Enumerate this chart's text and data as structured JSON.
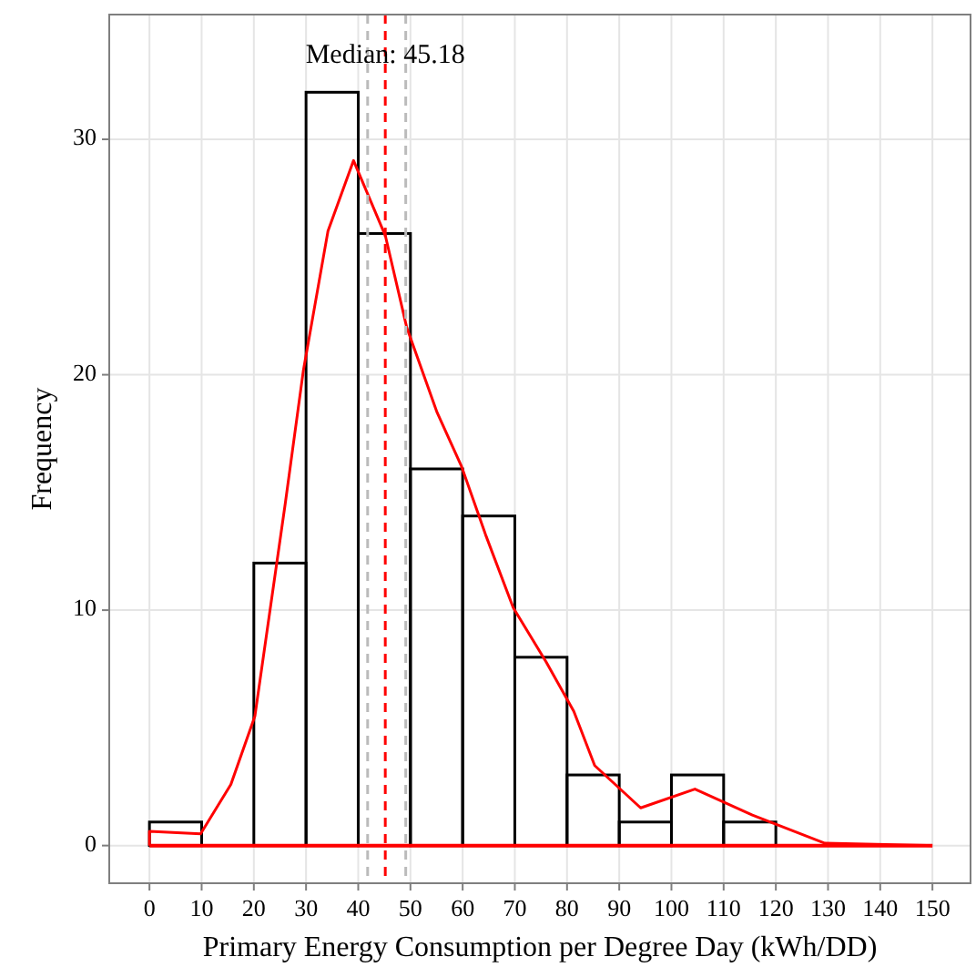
{
  "chart_data": {
    "type": "histogram",
    "xlabel": "Primary Energy Consumption per Degree Day (kWh/DD)",
    "ylabel": "Frequency",
    "bins": [
      0,
      10,
      20,
      30,
      40,
      50,
      60,
      70,
      80,
      90,
      100,
      110,
      120
    ],
    "values": [
      1,
      0,
      12,
      32,
      26,
      16,
      14,
      8,
      3,
      1,
      3,
      1
    ],
    "color": "#000000",
    "series": [
      {
        "type": "line",
        "color": "#ff0000",
        "x": [
          0,
          0,
          9.8,
          15.6,
          20.2,
          26,
          29.5,
          34.2,
          39.1,
          45.2,
          49.3,
          55.1,
          59.8,
          64.4,
          69.7,
          76,
          81.3,
          85.3,
          94.1,
          104.5,
          115.5,
          129.4,
          150
        ],
        "values": [
          0,
          0.6,
          0.5,
          2.6,
          5.5,
          14.5,
          20.2,
          26.1,
          29.1,
          25.9,
          22,
          18.4,
          16.1,
          13.2,
          10.1,
          7.8,
          5.7,
          3.4,
          1.6,
          2.4,
          1.3,
          0.1,
          0
        ]
      }
    ],
    "ref_lines": [
      {
        "axis": "y",
        "value": 0,
        "color": "#ff0000",
        "line_style": "solid"
      },
      {
        "axis": "x",
        "value": 45.18,
        "color": "#ff0000",
        "line_style": "dashed"
      },
      {
        "axis": "x",
        "value": 41.8,
        "color": "#bbbbbb",
        "line_style": "dashed"
      },
      {
        "axis": "x",
        "value": 49.1,
        "color": "#bbbbbb",
        "line_style": "dashed"
      }
    ],
    "annotations": [
      {
        "text": "Median: 45.18",
        "x": 45.18,
        "y": 33.5
      }
    ],
    "xlim": [
      -7.7,
      157.3
    ],
    "ylim": [
      -1.6,
      35.3
    ],
    "xticks": [
      0,
      10,
      20,
      30,
      40,
      50,
      60,
      70,
      80,
      90,
      100,
      110,
      120,
      130,
      140,
      150
    ],
    "yticks": [
      0,
      10,
      20,
      30
    ],
    "grid": true,
    "marker": "none",
    "line_style": "solid"
  }
}
